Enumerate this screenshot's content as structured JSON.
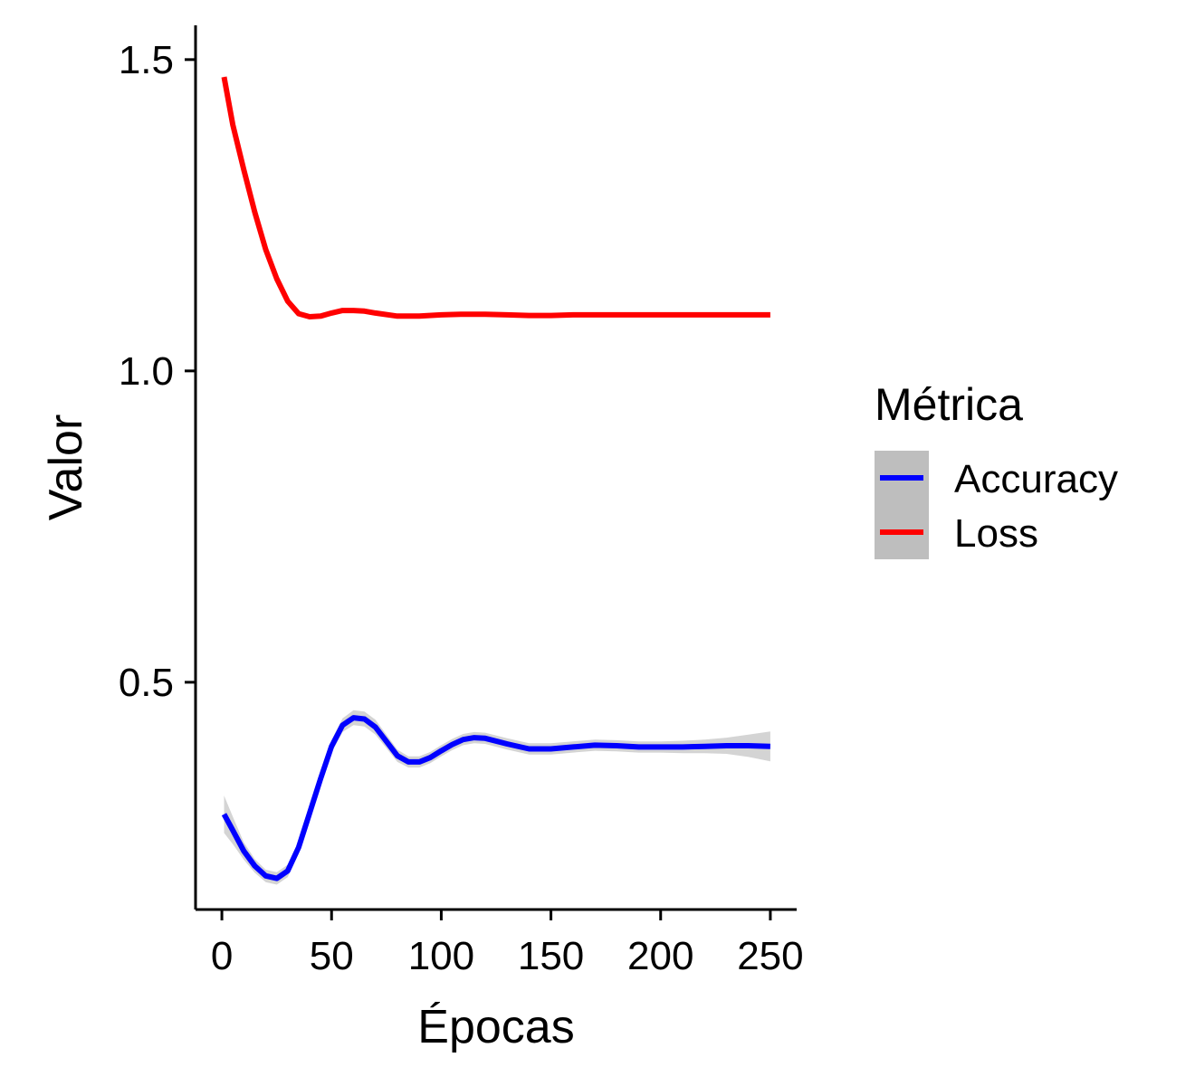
{
  "chart_data": {
    "type": "line",
    "title": "",
    "xlabel": "Épocas",
    "ylabel": "Valor",
    "xlim": [
      -12,
      262
    ],
    "ylim": [
      0.135,
      1.555
    ],
    "x_ticks": [
      0,
      50,
      100,
      150,
      200,
      250
    ],
    "x_tick_labels": [
      "0",
      "50",
      "100",
      "150",
      "200",
      "250"
    ],
    "y_ticks": [
      0.5,
      1.0,
      1.5
    ],
    "y_tick_labels": [
      "0.5",
      "1.0",
      "1.5"
    ],
    "grid": false,
    "legend": {
      "title": "Métrica",
      "position": "right"
    },
    "series": [
      {
        "name": "Accuracy",
        "color": "#0000ff",
        "band_color": "#cccccc",
        "x": [
          1,
          5,
          10,
          15,
          20,
          25,
          30,
          35,
          40,
          45,
          50,
          55,
          60,
          65,
          70,
          75,
          80,
          85,
          90,
          95,
          100,
          105,
          110,
          115,
          120,
          130,
          140,
          150,
          160,
          170,
          180,
          190,
          200,
          210,
          220,
          230,
          240,
          250
        ],
        "values": [
          0.288,
          0.262,
          0.229,
          0.205,
          0.189,
          0.185,
          0.197,
          0.235,
          0.29,
          0.345,
          0.397,
          0.431,
          0.443,
          0.441,
          0.428,
          0.405,
          0.382,
          0.372,
          0.372,
          0.379,
          0.39,
          0.4,
          0.408,
          0.411,
          0.41,
          0.401,
          0.393,
          0.393,
          0.396,
          0.399,
          0.398,
          0.396,
          0.396,
          0.396,
          0.397,
          0.398,
          0.398,
          0.397
        ],
        "band_halfwidth": [
          0.03,
          0.022,
          0.014,
          0.011,
          0.01,
          0.01,
          0.01,
          0.01,
          0.01,
          0.01,
          0.01,
          0.011,
          0.012,
          0.012,
          0.012,
          0.011,
          0.01,
          0.009,
          0.009,
          0.009,
          0.009,
          0.009,
          0.009,
          0.009,
          0.009,
          0.009,
          0.009,
          0.009,
          0.009,
          0.009,
          0.009,
          0.009,
          0.009,
          0.01,
          0.011,
          0.013,
          0.018,
          0.024
        ]
      },
      {
        "name": "Loss",
        "color": "#ff0000",
        "band_color": "#cccccc",
        "x": [
          1,
          5,
          10,
          15,
          20,
          25,
          30,
          35,
          40,
          45,
          50,
          55,
          60,
          65,
          70,
          80,
          90,
          100,
          110,
          120,
          130,
          140,
          150,
          160,
          170,
          180,
          190,
          200,
          210,
          220,
          230,
          240,
          250
        ],
        "values": [
          1.472,
          1.395,
          1.323,
          1.255,
          1.195,
          1.148,
          1.112,
          1.092,
          1.087,
          1.088,
          1.093,
          1.097,
          1.097,
          1.096,
          1.093,
          1.088,
          1.088,
          1.09,
          1.091,
          1.091,
          1.09,
          1.089,
          1.089,
          1.09,
          1.09,
          1.09,
          1.09,
          1.09,
          1.09,
          1.09,
          1.09,
          1.09,
          1.09
        ],
        "band_halfwidth": [
          0.004,
          0.003,
          0.002,
          0.002,
          0.002,
          0.002,
          0.002,
          0.002,
          0.002,
          0.002,
          0.002,
          0.002,
          0.002,
          0.002,
          0.002,
          0.002,
          0.002,
          0.002,
          0.002,
          0.002,
          0.002,
          0.002,
          0.002,
          0.002,
          0.002,
          0.002,
          0.002,
          0.002,
          0.002,
          0.002,
          0.002,
          0.002,
          0.003
        ]
      }
    ]
  }
}
